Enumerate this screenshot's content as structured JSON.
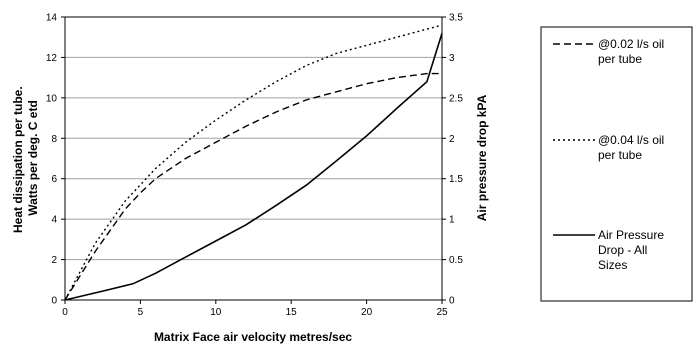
{
  "chart_data": {
    "type": "line",
    "xlabel": "Matrix Face air velocity metres/sec",
    "ylabel_left": [
      "Heat dissipation per tube.",
      "Watts per deg. C etd"
    ],
    "ylabel_right": "Air pressure drop kPA",
    "x_ticks": [
      "0",
      "5",
      "10",
      "15",
      "20",
      "25"
    ],
    "y_left_ticks": [
      "0",
      "2",
      "4",
      "6",
      "8",
      "10",
      "12",
      "14"
    ],
    "y_right_ticks": [
      "0",
      "0.5",
      "1",
      "1.5",
      "2",
      "2.5",
      "3",
      "3.5"
    ],
    "xlim": [
      0,
      25
    ],
    "ylim_left": [
      0,
      14
    ],
    "ylim_right": [
      0,
      3.5
    ],
    "grid": "horizontal",
    "legend_placement": "right",
    "series": [
      {
        "name": "@0.02 l/s oil per tube",
        "axis": "left",
        "style": "dashed",
        "x": [
          0,
          2,
          4,
          5,
          6,
          8,
          10,
          12,
          14,
          16,
          18,
          20,
          22,
          24,
          25
        ],
        "y": [
          0,
          2.4,
          4.5,
          5.3,
          6.0,
          7.0,
          7.8,
          8.6,
          9.3,
          9.9,
          10.3,
          10.7,
          11.0,
          11.2,
          11.2
        ]
      },
      {
        "name": "@0.04 l/s oil per tube",
        "axis": "left",
        "style": "dotted",
        "x": [
          0,
          2,
          4,
          5,
          6,
          8,
          10,
          12,
          14,
          16,
          18,
          20,
          22,
          24,
          25
        ],
        "y": [
          0,
          2.8,
          4.9,
          5.7,
          6.5,
          7.8,
          8.9,
          9.9,
          10.8,
          11.6,
          12.2,
          12.6,
          13.0,
          13.4,
          13.6
        ]
      },
      {
        "name": "Air Pressure Drop - All Sizes",
        "axis": "right",
        "style": "solid",
        "x": [
          0,
          2.5,
          4.5,
          6,
          8,
          10,
          12,
          14,
          16,
          18,
          20,
          22,
          24,
          25
        ],
        "y": [
          0,
          0.11,
          0.2,
          0.33,
          0.53,
          0.73,
          0.93,
          1.17,
          1.42,
          1.72,
          2.03,
          2.37,
          2.7,
          3.3
        ]
      }
    ],
    "legend": [
      {
        "lines": [
          "@0.02 l/s oil",
          "per tube"
        ]
      },
      {
        "lines": [
          "@0.04 l/s oil",
          "per tube"
        ]
      },
      {
        "lines": [
          "Air Pressure",
          "Drop - All",
          "Sizes"
        ]
      }
    ]
  }
}
